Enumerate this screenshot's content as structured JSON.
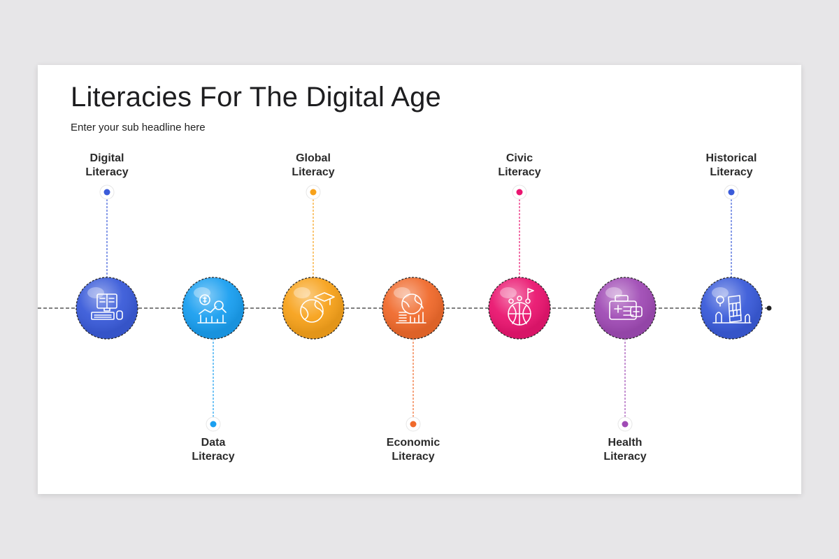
{
  "title": "Literacies For The Digital Age",
  "subtitle": "Enter your sub headline here",
  "items": [
    {
      "line1": "Digital",
      "line2": "Literacy",
      "color": "#3a5bd9",
      "icon": "computer-book-icon",
      "position": "top"
    },
    {
      "line1": "Data",
      "line2": "Literacy",
      "color": "#1a9ff0",
      "icon": "data-chart-icon",
      "position": "bottom"
    },
    {
      "line1": "Global",
      "line2": "Literacy",
      "color": "#f7a21b",
      "icon": "globe-graduation-icon",
      "position": "top"
    },
    {
      "line1": "Economic",
      "line2": "Literacy",
      "color": "#f06a2c",
      "icon": "globe-coins-icon",
      "position": "bottom"
    },
    {
      "line1": "Civic",
      "line2": "Literacy",
      "color": "#ea1670",
      "icon": "civic-people-globe-icon",
      "position": "top"
    },
    {
      "line1": "Health",
      "line2": "Literacy",
      "color": "#a04bb5",
      "icon": "medical-kit-icon",
      "position": "bottom"
    },
    {
      "line1": "Historical",
      "line2": "Literacy",
      "color": "#3a5bd9",
      "icon": "leaning-tower-icon",
      "position": "top"
    }
  ]
}
